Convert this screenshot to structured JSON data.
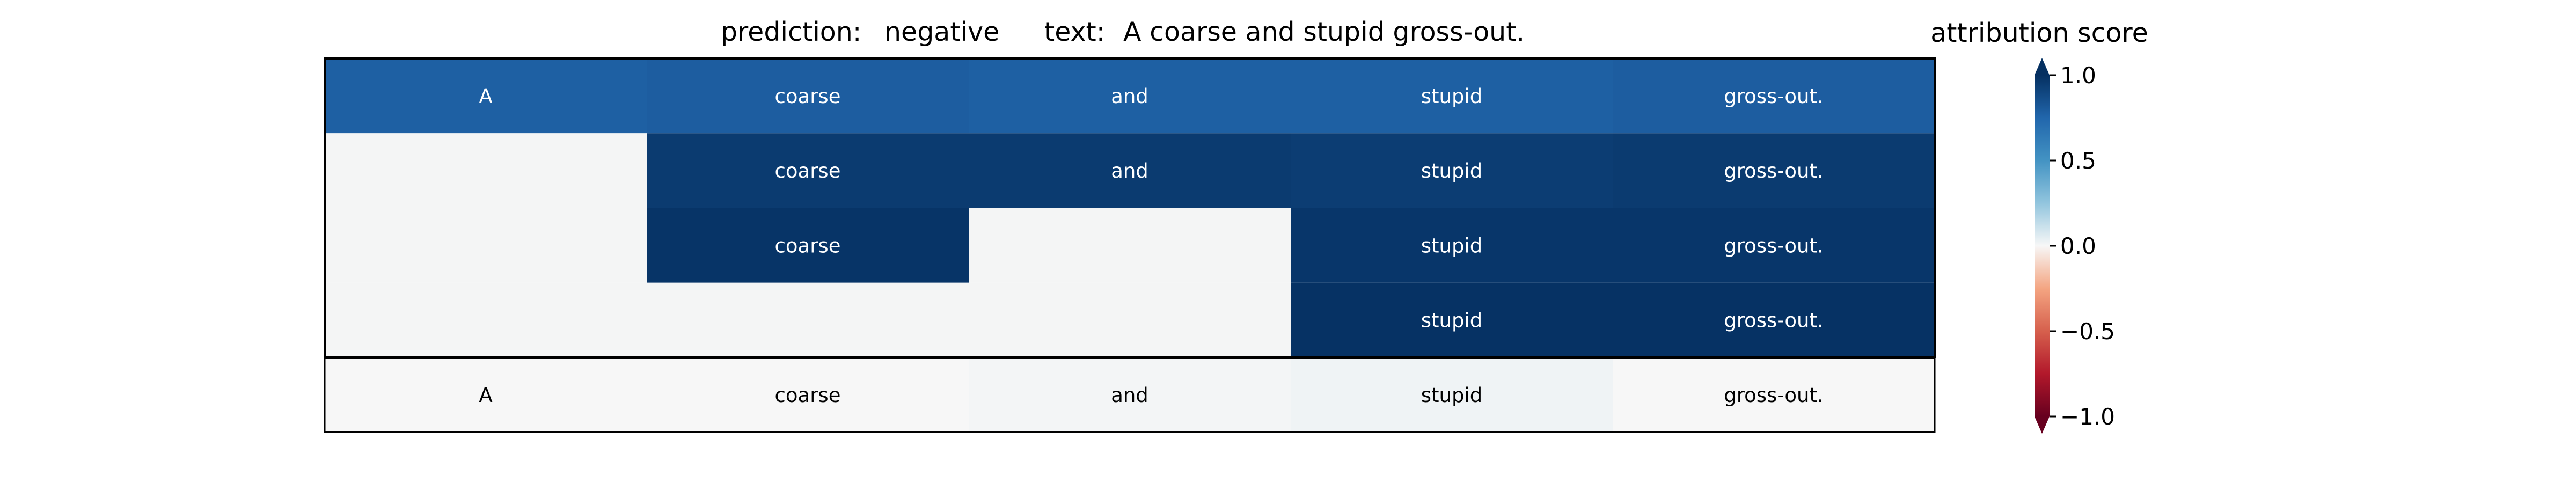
{
  "chart_data": {
    "type": "heatmap",
    "title": {
      "prediction_label": "prediction:",
      "prediction_value": "negative",
      "text_label": "text:",
      "text_value": "A coarse and stupid gross-out."
    },
    "tokens": [
      "A",
      "coarse",
      "and",
      "stupid",
      "gross-out."
    ],
    "rows": [
      {
        "cells": [
          {
            "token": "A",
            "value": 0.78
          },
          {
            "token": "coarse",
            "value": 0.79
          },
          {
            "token": "and",
            "value": 0.78
          },
          {
            "token": "stupid",
            "value": 0.78
          },
          {
            "token": "gross-out.",
            "value": 0.79
          }
        ]
      },
      {
        "cells": [
          null,
          {
            "token": "coarse",
            "value": 0.95
          },
          {
            "token": "and",
            "value": 0.95
          },
          {
            "token": "stupid",
            "value": 0.94
          },
          {
            "token": "gross-out.",
            "value": 0.95
          }
        ]
      },
      {
        "cells": [
          null,
          {
            "token": "coarse",
            "value": 0.98
          },
          null,
          {
            "token": "stupid",
            "value": 0.97
          },
          {
            "token": "gross-out.",
            "value": 0.97
          }
        ]
      },
      {
        "cells": [
          null,
          null,
          null,
          {
            "token": "stupid",
            "value": 0.99
          },
          {
            "token": "gross-out.",
            "value": 0.99
          }
        ]
      }
    ],
    "bottom_row": [
      {
        "token": "A",
        "value": 0.0
      },
      {
        "token": "coarse",
        "value": 0.0
      },
      {
        "token": "and",
        "value": 0.01
      },
      {
        "token": "stupid",
        "value": 0.02
      },
      {
        "token": "gross-out.",
        "value": 0.0
      }
    ],
    "colorbar": {
      "label": "attribution score",
      "vmin": -1.0,
      "vmax": 1.0,
      "ticks": [
        1.0,
        0.5,
        0.0,
        -0.5,
        -1.0
      ],
      "tick_labels": [
        "1.0",
        "0.5",
        "0.0",
        "−0.5",
        "−1.0"
      ],
      "colormap": "RdBu"
    },
    "colors": {
      "empty_cell": "#f4f5f5",
      "frame": "#000000"
    }
  }
}
